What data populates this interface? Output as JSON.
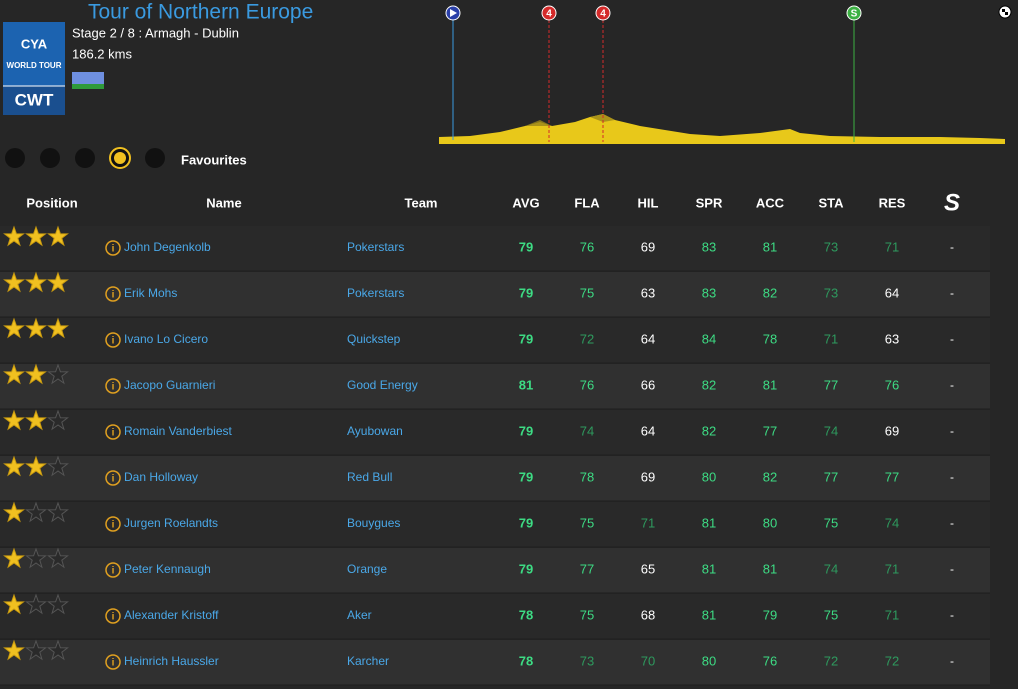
{
  "header": {
    "title": "Tour of Northern Europe",
    "stage": "Stage 2 / 8 : Armagh - Dublin",
    "distance": "186.2 kms",
    "logo": {
      "top": "CYA",
      "middle": "WORLD TOUR",
      "bottom": "CWT"
    }
  },
  "profile": {
    "markers": [
      {
        "label": "4",
        "color": "#d42a2a"
      },
      {
        "label": "4",
        "color": "#d42a2a"
      },
      {
        "label": "S",
        "color": "#3cb043"
      }
    ]
  },
  "tabs": {
    "active": "Favourites"
  },
  "table": {
    "columns": [
      "Position",
      "Name",
      "Team",
      "AVG",
      "FLA",
      "HIL",
      "SPR",
      "ACC",
      "STA",
      "RES"
    ],
    "rows": [
      {
        "stars": 3,
        "name": "John Degenkolb",
        "team": "Pokerstars",
        "stats": [
          79,
          76,
          69,
          83,
          81,
          73,
          71
        ],
        "extra": "-"
      },
      {
        "stars": 3,
        "name": "Erik Mohs",
        "team": "Pokerstars",
        "stats": [
          79,
          75,
          63,
          83,
          82,
          73,
          64
        ],
        "extra": "-"
      },
      {
        "stars": 3,
        "name": "Ivano Lo Cicero",
        "team": "Quickstep",
        "stats": [
          79,
          72,
          64,
          84,
          78,
          71,
          63
        ],
        "extra": "-"
      },
      {
        "stars": 2,
        "name": "Jacopo Guarnieri",
        "team": "Good Energy",
        "stats": [
          81,
          76,
          66,
          82,
          81,
          77,
          76
        ],
        "extra": "-"
      },
      {
        "stars": 2,
        "name": "Romain Vanderbiest",
        "team": "Ayubowan",
        "stats": [
          79,
          74,
          64,
          82,
          77,
          74,
          69
        ],
        "extra": "-"
      },
      {
        "stars": 2,
        "name": "Dan Holloway",
        "team": "Red Bull",
        "stats": [
          79,
          78,
          69,
          80,
          82,
          77,
          77
        ],
        "extra": "-"
      },
      {
        "stars": 1,
        "name": "Jurgen Roelandts",
        "team": "Bouygues",
        "stats": [
          79,
          75,
          71,
          81,
          80,
          75,
          74
        ],
        "extra": "-"
      },
      {
        "stars": 1,
        "name": "Peter Kennaugh",
        "team": "Orange",
        "stats": [
          79,
          77,
          65,
          81,
          81,
          74,
          71
        ],
        "extra": "-"
      },
      {
        "stars": 1,
        "name": "Alexander Kristoff",
        "team": "Aker",
        "stats": [
          78,
          75,
          68,
          81,
          79,
          75,
          71
        ],
        "extra": "-"
      },
      {
        "stars": 1,
        "name": "Heinrich Haussler",
        "team": "Karcher",
        "stats": [
          78,
          73,
          70,
          80,
          76,
          72,
          72
        ],
        "extra": "-"
      }
    ]
  }
}
